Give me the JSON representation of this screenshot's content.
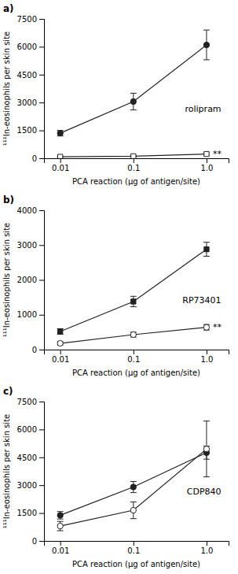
{
  "chart_data": [
    {
      "type": "line",
      "title": "a)",
      "xlabel": "PCA reaction (μg of antigen/site)",
      "ylabel": "¹¹¹In-eosinophils per skin site",
      "annotations": [
        "rolipram",
        "**"
      ],
      "x": [
        0.01,
        0.1,
        1.0
      ],
      "series": [
        {
          "values": [
            1350,
            3050,
            6100
          ],
          "errors": [
            150,
            450,
            800
          ],
          "marker": "circle",
          "color": "#222222",
          "line_style": "solid"
        },
        {
          "values": [
            80,
            110,
            230
          ],
          "errors": [
            30,
            40,
            70
          ],
          "marker": "square-open",
          "color": "#222222",
          "line_style": "solid"
        }
      ],
      "log": "x",
      "grid": false,
      "xlim": [
        0.006,
        2.0
      ],
      "xticks": [
        0.01,
        0.1,
        {
          "value": 1.0,
          "label": "1.0"
        }
      ],
      "ylim": [
        0,
        7500
      ],
      "yticks": [
        0,
        1500,
        3000,
        4500,
        6000,
        7500
      ]
    },
    {
      "type": "line",
      "title": "b)",
      "xlabel": "PCA reaction (μg of antigen/site)",
      "ylabel": "¹¹¹In-eosinophils per skin site",
      "annotations": [
        "RP73401",
        "**"
      ],
      "x": [
        0.01,
        0.1,
        1.0
      ],
      "series": [
        {
          "values": [
            520,
            1380,
            2880
          ],
          "errors": [
            80,
            150,
            200
          ],
          "marker": "square",
          "color": "#222222",
          "line_style": "solid"
        },
        {
          "values": [
            180,
            430,
            640
          ],
          "errors": [
            50,
            70,
            80
          ],
          "marker": "circle-open",
          "color": "#222222",
          "line_style": "solid"
        }
      ],
      "log": "x",
      "grid": false,
      "xlim": [
        0.006,
        2.0
      ],
      "xticks": [
        0.01,
        0.1,
        {
          "value": 1.0,
          "label": "1.0"
        }
      ],
      "ylim": [
        0,
        4000
      ],
      "yticks": [
        0,
        1000,
        2000,
        3000,
        4000
      ]
    },
    {
      "type": "line",
      "title": "c)",
      "xlabel": "PCA reaction (μg of antigen/site)",
      "ylabel": "¹¹¹In-eosinophils per skin site",
      "annotations": [
        "CDP840"
      ],
      "x": [
        0.01,
        0.1,
        1.0
      ],
      "series": [
        {
          "values": [
            1380,
            2900,
            4750
          ],
          "errors": [
            200,
            300,
            350
          ],
          "marker": "circle",
          "color": "#222222",
          "line_style": "solid"
        },
        {
          "values": [
            800,
            1650,
            4950
          ],
          "errors": [
            250,
            450,
            1500
          ],
          "marker": "circle-open",
          "color": "#222222",
          "line_style": "solid"
        }
      ],
      "log": "x",
      "grid": false,
      "xlim": [
        0.006,
        2.0
      ],
      "xticks": [
        0.01,
        0.1,
        {
          "value": 1.0,
          "label": "1.0"
        }
      ],
      "ylim": [
        0,
        7500
      ],
      "yticks": [
        0,
        1500,
        3000,
        4500,
        6000,
        7500
      ]
    }
  ]
}
